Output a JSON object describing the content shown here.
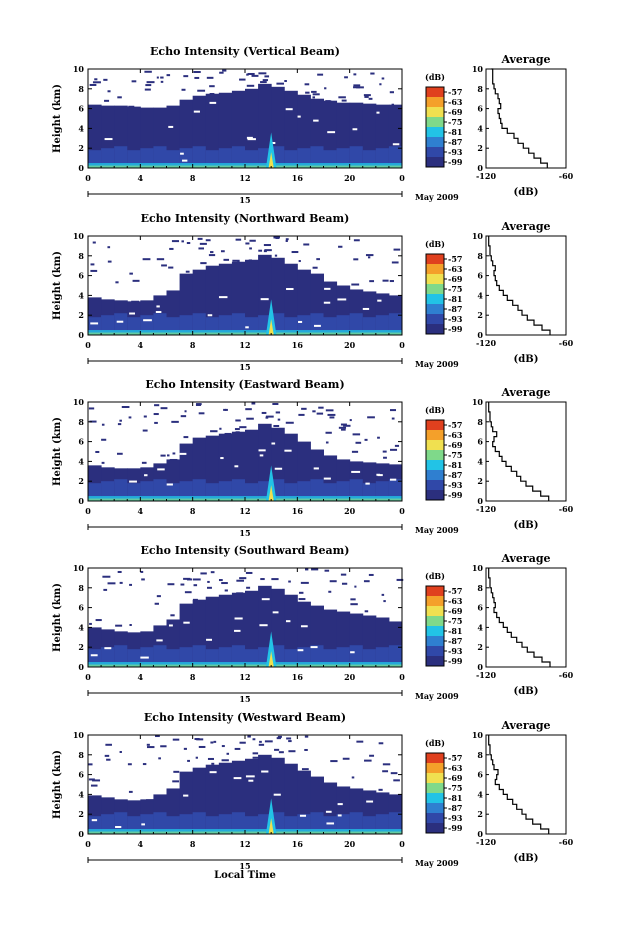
{
  "figure": {
    "xlabel": "Local Time",
    "colorbar_unit": "(dB)",
    "colorbar_levels": [
      "-57",
      "-63",
      "-69",
      "-75",
      "-81",
      "-87",
      "-93",
      "-99"
    ],
    "colorbar_colors": [
      "#e0401e",
      "#f4a02a",
      "#f0e050",
      "#7fd98a",
      "#22c3e6",
      "#2f7fd0",
      "#3048a8",
      "#2b2f7e"
    ],
    "colors": {
      "background_echo": "#2b2f7e",
      "echo_mid": "#3048a8",
      "echo_bright": "#22c3e6"
    }
  },
  "chart_data": [
    {
      "type": "heatmap",
      "title": "Echo Intensity (Vertical Beam)",
      "ylabel": "Height (km)",
      "xticks": [
        "0",
        "4",
        "8",
        "12",
        "16",
        "20",
        "0"
      ],
      "yticks": [
        "0",
        "2",
        "4",
        "6",
        "8",
        "10"
      ],
      "xlim": [
        0,
        24
      ],
      "ylim": [
        0,
        10
      ],
      "date_tick": "15",
      "date_label": "May 2009",
      "echo_top_km": [
        6.4,
        6.3,
        6.3,
        6.2,
        6.1,
        6.1,
        6.3,
        6.9,
        7.3,
        7.5,
        7.6,
        7.8,
        8.0,
        8.5,
        8.2,
        7.8,
        7.4,
        7.0,
        6.8,
        6.6,
        6.6,
        6.5,
        6.4,
        6.4
      ],
      "profile": {
        "title": "Average",
        "xlabel": "(dB)",
        "xticks": [
          "-120",
          "-60"
        ],
        "xlim": [
          -120,
          -60
        ],
        "ylim": [
          0,
          10
        ],
        "x": [
          -74,
          -79,
          -84,
          -88,
          -92,
          -96,
          -99,
          -104,
          -108,
          -109,
          -110,
          -111,
          -109,
          -110,
          -111,
          -113,
          -114,
          -115,
          -115,
          -115,
          -116
        ],
        "y": [
          0.0,
          0.5,
          1.0,
          1.5,
          2.0,
          2.5,
          3.0,
          3.5,
          4.0,
          4.5,
          5.0,
          5.5,
          6.0,
          6.5,
          7.0,
          7.5,
          8.0,
          8.5,
          9.0,
          9.5,
          10.0
        ]
      }
    },
    {
      "type": "heatmap",
      "title": "Echo Intensity (Northward Beam)",
      "ylabel": "Height (km)",
      "xticks": [
        "0",
        "4",
        "8",
        "12",
        "16",
        "20",
        "0"
      ],
      "yticks": [
        "0",
        "2",
        "4",
        "6",
        "8",
        "10"
      ],
      "xlim": [
        0,
        24
      ],
      "ylim": [
        0,
        10
      ],
      "date_tick": "15",
      "date_label": "May 2009",
      "echo_top_km": [
        3.8,
        3.6,
        3.5,
        3.4,
        3.5,
        4.0,
        4.5,
        6.2,
        6.6,
        7.0,
        7.2,
        7.4,
        7.6,
        8.1,
        7.8,
        7.2,
        6.6,
        6.2,
        5.4,
        5.0,
        4.6,
        4.4,
        4.2,
        4.0
      ],
      "profile": {
        "title": "Average",
        "xlabel": "(dB)",
        "xticks": [
          "-120",
          "-60"
        ],
        "xlim": [
          -120,
          -60
        ],
        "ylim": [
          0,
          10
        ],
        "x": [
          -72,
          -78,
          -84,
          -89,
          -93,
          -96,
          -100,
          -104,
          -107,
          -110,
          -112,
          -113,
          -114,
          -113,
          -115,
          -116,
          -117,
          -117,
          -118,
          -118,
          -118
        ],
        "y": [
          0.0,
          0.5,
          1.0,
          1.5,
          2.0,
          2.5,
          3.0,
          3.5,
          4.0,
          4.5,
          5.0,
          5.5,
          6.0,
          6.5,
          7.0,
          7.5,
          8.0,
          8.5,
          9.0,
          9.5,
          10.0
        ]
      }
    },
    {
      "type": "heatmap",
      "title": "Echo Intensity (Eastward Beam)",
      "ylabel": "Height (km)",
      "xticks": [
        "0",
        "4",
        "8",
        "12",
        "16",
        "20",
        "0"
      ],
      "yticks": [
        "0",
        "2",
        "4",
        "6",
        "8",
        "10"
      ],
      "xlim": [
        0,
        24
      ],
      "ylim": [
        0,
        10
      ],
      "date_tick": "15",
      "date_label": "May 2009",
      "echo_top_km": [
        3.6,
        3.4,
        3.3,
        3.3,
        3.4,
        3.8,
        4.2,
        5.8,
        6.4,
        6.6,
        6.8,
        7.0,
        7.2,
        7.8,
        7.4,
        6.8,
        6.0,
        5.2,
        4.6,
        4.2,
        4.0,
        3.9,
        3.8,
        3.7
      ],
      "profile": {
        "title": "Average",
        "xlabel": "(dB)",
        "xticks": [
          "-120",
          "-60"
        ],
        "xlim": [
          -120,
          -60
        ],
        "ylim": [
          0,
          10
        ],
        "x": [
          -73,
          -79,
          -85,
          -90,
          -94,
          -97,
          -101,
          -105,
          -108,
          -110,
          -113,
          -115,
          -114,
          -112,
          -115,
          -116,
          -117,
          -117,
          -118,
          -118,
          -118
        ],
        "y": [
          0.0,
          0.5,
          1.0,
          1.5,
          2.0,
          2.5,
          3.0,
          3.5,
          4.0,
          4.5,
          5.0,
          5.5,
          6.0,
          6.5,
          7.0,
          7.5,
          8.0,
          8.5,
          9.0,
          9.5,
          10.0
        ]
      }
    },
    {
      "type": "heatmap",
      "title": "Echo Intensity (Southward Beam)",
      "ylabel": "Height (km)",
      "xticks": [
        "0",
        "4",
        "8",
        "12",
        "16",
        "20",
        "0"
      ],
      "yticks": [
        "0",
        "2",
        "4",
        "6",
        "8",
        "10"
      ],
      "xlim": [
        0,
        24
      ],
      "ylim": [
        0,
        10
      ],
      "date_tick": "15",
      "date_label": "May 2009",
      "echo_top_km": [
        4.0,
        3.8,
        3.6,
        3.5,
        3.6,
        4.2,
        4.8,
        6.4,
        6.8,
        7.1,
        7.3,
        7.5,
        7.7,
        8.2,
        7.9,
        7.3,
        6.6,
        6.2,
        5.8,
        5.6,
        5.4,
        5.2,
        5.0,
        4.6
      ],
      "profile": {
        "title": "Average",
        "xlabel": "(dB)",
        "xticks": [
          "-120",
          "-60"
        ],
        "xlim": [
          -120,
          -60
        ],
        "ylim": [
          0,
          10
        ],
        "x": [
          -72,
          -78,
          -84,
          -89,
          -93,
          -97,
          -101,
          -104,
          -107,
          -110,
          -112,
          -114,
          -113,
          -114,
          -115,
          -116,
          -117,
          -117,
          -118,
          -118,
          -118
        ],
        "y": [
          0.0,
          0.5,
          1.0,
          1.5,
          2.0,
          2.5,
          3.0,
          3.5,
          4.0,
          4.5,
          5.0,
          5.5,
          6.0,
          6.5,
          7.0,
          7.5,
          8.0,
          8.5,
          9.0,
          9.5,
          10.0
        ]
      }
    },
    {
      "type": "heatmap",
      "title": "Echo Intensity (Westward Beam)",
      "ylabel": "Height (km)",
      "xticks": [
        "0",
        "4",
        "8",
        "12",
        "16",
        "20",
        "0"
      ],
      "yticks": [
        "0",
        "2",
        "4",
        "6",
        "8",
        "10"
      ],
      "xlim": [
        0,
        24
      ],
      "ylim": [
        0,
        10
      ],
      "date_tick": "15",
      "date_label": "May 2009",
      "echo_top_km": [
        3.9,
        3.7,
        3.5,
        3.4,
        3.5,
        4.0,
        4.6,
        6.3,
        6.7,
        7.0,
        7.2,
        7.4,
        7.6,
        8.0,
        7.7,
        7.1,
        6.4,
        5.8,
        5.2,
        4.8,
        4.6,
        4.4,
        4.2,
        4.0
      ],
      "profile": {
        "title": "Average",
        "xlabel": "(dB)",
        "xticks": [
          "-120",
          "-60"
        ],
        "xlim": [
          -120,
          -60
        ],
        "ylim": [
          0,
          10
        ],
        "x": [
          -73,
          -79,
          -85,
          -90,
          -93,
          -97,
          -100,
          -104,
          -107,
          -110,
          -113,
          -112,
          -111,
          -114,
          -115,
          -116,
          -117,
          -117,
          -118,
          -118,
          -118
        ],
        "y": [
          0.0,
          0.5,
          1.0,
          1.5,
          2.0,
          2.5,
          3.0,
          3.5,
          4.0,
          4.5,
          5.0,
          5.5,
          6.0,
          6.5,
          7.0,
          7.5,
          8.0,
          8.5,
          9.0,
          9.5,
          10.0
        ]
      }
    }
  ]
}
